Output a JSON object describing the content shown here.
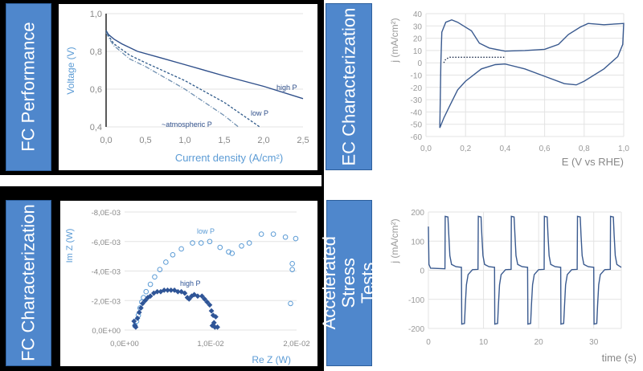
{
  "panels": {
    "fc_performance": "FC Performance",
    "ec_characterization": "EC Characterization",
    "fc_characterization": "FC Characterization",
    "accelerated_stress_tests": "Accelerated Stress Tests"
  },
  "chart_data": [
    {
      "type": "line",
      "xlabel": "Current density (A/cm²)",
      "ylabel": "Voltage (V)",
      "xlim": [
        0,
        2.5
      ],
      "ylim": [
        0.4,
        1.0
      ],
      "xticks": [
        "0,0",
        "0,5",
        "1,0",
        "1,5",
        "2,0",
        "2,5"
      ],
      "yticks": [
        "0,4",
        "0,6",
        "0,8",
        "1,0"
      ],
      "grid": "horizontal",
      "series": [
        {
          "name": "high P",
          "style": "solid",
          "color": "#2f4f8a",
          "points": [
            [
              0,
              0.91
            ],
            [
              0.03,
              0.89
            ],
            [
              0.1,
              0.865
            ],
            [
              0.2,
              0.84
            ],
            [
              0.4,
              0.8
            ],
            [
              0.7,
              0.765
            ],
            [
              1.0,
              0.73
            ],
            [
              1.5,
              0.67
            ],
            [
              2.0,
              0.615
            ],
            [
              2.5,
              0.55
            ]
          ]
        },
        {
          "name": "low P",
          "style": "dashed",
          "color": "#2f5a8a",
          "points": [
            [
              0,
              0.91
            ],
            [
              0.05,
              0.87
            ],
            [
              0.1,
              0.84
            ],
            [
              0.3,
              0.78
            ],
            [
              0.5,
              0.74
            ],
            [
              1.0,
              0.645
            ],
            [
              1.5,
              0.53
            ],
            [
              1.95,
              0.4
            ]
          ]
        },
        {
          "name": "~atmospheric  P",
          "style": "dashdot",
          "color": "#6f8fb0",
          "points": [
            [
              0,
              0.9
            ],
            [
              0.05,
              0.86
            ],
            [
              0.1,
              0.83
            ],
            [
              0.3,
              0.76
            ],
            [
              0.5,
              0.72
            ],
            [
              1.0,
              0.6
            ],
            [
              1.5,
              0.46
            ],
            [
              1.68,
              0.4
            ]
          ]
        }
      ]
    },
    {
      "type": "line",
      "xlabel": "E (V vs RHE)",
      "ylabel": "j (mA/cm²)",
      "xlim": [
        0,
        1.0
      ],
      "ylim": [
        -60,
        40
      ],
      "xticks": [
        "0,0",
        "0,2",
        "0,4",
        "0,6",
        "0,8",
        "1,0"
      ],
      "yticks": [
        "40",
        "30",
        "20",
        "10",
        "0",
        "-10",
        "-20",
        "-30",
        "-40",
        "-50",
        "-60"
      ],
      "grid": "both",
      "series": [
        {
          "style": "solid",
          "color": "#3a5a8f",
          "points": [
            [
              0.07,
              -53
            ],
            [
              0.075,
              0
            ],
            [
              0.08,
              25
            ],
            [
              0.1,
              33
            ],
            [
              0.13,
              35
            ],
            [
              0.16,
              33
            ],
            [
              0.2,
              29
            ],
            [
              0.23,
              26
            ],
            [
              0.27,
              16
            ],
            [
              0.32,
              12
            ],
            [
              0.4,
              9.5
            ],
            [
              0.5,
              10
            ],
            [
              0.6,
              11
            ],
            [
              0.67,
              15
            ],
            [
              0.72,
              23
            ],
            [
              0.78,
              29
            ],
            [
              0.82,
              32
            ],
            [
              0.9,
              31
            ],
            [
              1.0,
              32
            ],
            [
              0.995,
              15
            ],
            [
              0.97,
              5
            ],
            [
              0.9,
              -5
            ],
            [
              0.8,
              -15
            ],
            [
              0.76,
              -18
            ],
            [
              0.7,
              -17
            ],
            [
              0.6,
              -11
            ],
            [
              0.5,
              -5
            ],
            [
              0.4,
              -1
            ],
            [
              0.35,
              -1.5
            ],
            [
              0.28,
              -5
            ],
            [
              0.2,
              -15
            ],
            [
              0.16,
              -22
            ],
            [
              0.12,
              -35
            ],
            [
              0.09,
              -45
            ],
            [
              0.07,
              -53
            ]
          ]
        },
        {
          "style": "dotted",
          "color": "#1a2a4a",
          "points": [
            [
              0.09,
              0
            ],
            [
              0.1,
              3
            ],
            [
              0.12,
              4.5
            ],
            [
              0.4,
              4.5
            ]
          ]
        }
      ]
    },
    {
      "type": "scatter",
      "xlabel": "Re Z (W)",
      "ylabel": "Im Z (W)",
      "xlim": [
        0,
        0.02
      ],
      "ylim": [
        0,
        -0.008
      ],
      "xticks": [
        "0,0E+00",
        "1,0E-02",
        "2,0E-02"
      ],
      "yticks": [
        "0,0E+00",
        "-2,0E-03",
        "-4,0E-03",
        "-6,0E-03",
        "-8,0E-03"
      ],
      "grid": "horizontal",
      "series": [
        {
          "name": "low P",
          "marker": "circle",
          "color": "#5b9bd5",
          "points": [
            [
              0.0012,
              -0.0003
            ],
            [
              0.0014,
              -0.0006
            ],
            [
              0.0016,
              -0.001
            ],
            [
              0.0018,
              -0.0015
            ],
            [
              0.002,
              -0.0019
            ],
            [
              0.0022,
              -0.0022
            ],
            [
              0.0025,
              -0.0026
            ],
            [
              0.003,
              -0.0031
            ],
            [
              0.0035,
              -0.0036
            ],
            [
              0.0041,
              -0.0041
            ],
            [
              0.0048,
              -0.0046
            ],
            [
              0.0056,
              -0.0051
            ],
            [
              0.0066,
              -0.0055
            ],
            [
              0.0079,
              -0.0059
            ],
            [
              0.0089,
              -0.0059
            ],
            [
              0.0099,
              -0.006
            ],
            [
              0.0111,
              -0.0056
            ],
            [
              0.0121,
              -0.0053
            ],
            [
              0.0125,
              -0.0052
            ],
            [
              0.0136,
              -0.0057
            ],
            [
              0.0145,
              -0.0059
            ],
            [
              0.0159,
              -0.0065
            ],
            [
              0.0173,
              -0.0065
            ],
            [
              0.0187,
              -0.0063
            ],
            [
              0.0199,
              -0.0062
            ],
            [
              0.0195,
              -0.0045
            ],
            [
              0.0195,
              -0.0041
            ],
            [
              0.0193,
              -0.0018
            ]
          ]
        },
        {
          "name": "high P",
          "marker": "diamond",
          "color": "#2f5597",
          "points": [
            [
              0.0011,
              -0.0006
            ],
            [
              0.0012,
              -0.0003
            ],
            [
              0.0013,
              -0.0002
            ],
            [
              0.0015,
              -0.0008
            ],
            [
              0.0017,
              -0.0012
            ],
            [
              0.0019,
              -0.0015
            ],
            [
              0.0021,
              -0.0018
            ],
            [
              0.0024,
              -0.002
            ],
            [
              0.0027,
              -0.0022
            ],
            [
              0.003,
              -0.0023
            ],
            [
              0.0034,
              -0.0025
            ],
            [
              0.0038,
              -0.0026
            ],
            [
              0.0042,
              -0.0026
            ],
            [
              0.0046,
              -0.0027
            ],
            [
              0.005,
              -0.0027
            ],
            [
              0.0054,
              -0.0027
            ],
            [
              0.0058,
              -0.0027
            ],
            [
              0.0062,
              -0.0026
            ],
            [
              0.0066,
              -0.0026
            ],
            [
              0.007,
              -0.0025
            ],
            [
              0.0073,
              -0.0022
            ],
            [
              0.0075,
              -0.0021
            ],
            [
              0.0078,
              -0.0023
            ],
            [
              0.0081,
              -0.0024
            ],
            [
              0.0085,
              -0.0023
            ],
            [
              0.009,
              -0.0023
            ],
            [
              0.0093,
              -0.0021
            ],
            [
              0.0096,
              -0.0019
            ],
            [
              0.0099,
              -0.0017
            ],
            [
              0.0101,
              -0.0013
            ],
            [
              0.0103,
              -0.001
            ],
            [
              0.0106,
              -0.0009
            ],
            [
              0.0104,
              -0.0005
            ],
            [
              0.0102,
              -0.0003
            ],
            [
              0.0105,
              -0.0002
            ],
            [
              0.0108,
              -0.0002
            ]
          ]
        }
      ]
    },
    {
      "type": "line",
      "xlabel": "time (s)",
      "ylabel": "j (mA/cm²)",
      "xlim": [
        0,
        35
      ],
      "ylim": [
        -200,
        200
      ],
      "xticks": [
        "0",
        "10",
        "20",
        "30"
      ],
      "yticks": [
        "200",
        "100",
        "0",
        "-100",
        "-200"
      ],
      "grid": "both",
      "series": [
        {
          "style": "solid",
          "color": "#3a5a8f",
          "points": [
            [
              0,
              150
            ],
            [
              0.1,
              20
            ],
            [
              0.4,
              7
            ],
            [
              3,
              5
            ],
            [
              3.05,
              185
            ],
            [
              3.55,
              183
            ],
            [
              3.7,
              120
            ],
            [
              3.9,
              50
            ],
            [
              4.2,
              20
            ],
            [
              5,
              12
            ],
            [
              6,
              10
            ],
            [
              6.05,
              -185
            ],
            [
              6.55,
              -183
            ],
            [
              6.7,
              -120
            ],
            [
              6.9,
              -50
            ],
            [
              7.2,
              -15
            ],
            [
              8,
              2
            ],
            [
              9,
              3
            ],
            [
              9.05,
              185
            ],
            [
              9.55,
              183
            ],
            [
              9.7,
              120
            ],
            [
              9.9,
              50
            ],
            [
              10.2,
              20
            ],
            [
              11,
              12
            ],
            [
              12,
              10
            ],
            [
              12.05,
              -185
            ],
            [
              12.55,
              -183
            ],
            [
              12.7,
              -120
            ],
            [
              12.9,
              -50
            ],
            [
              13.2,
              -15
            ],
            [
              14,
              2
            ],
            [
              15,
              3
            ],
            [
              15.05,
              185
            ],
            [
              15.55,
              183
            ],
            [
              15.7,
              120
            ],
            [
              15.9,
              50
            ],
            [
              16.2,
              20
            ],
            [
              17,
              12
            ],
            [
              18,
              10
            ],
            [
              18.05,
              -185
            ],
            [
              18.55,
              -183
            ],
            [
              18.7,
              -120
            ],
            [
              18.9,
              -50
            ],
            [
              19.2,
              -15
            ],
            [
              20,
              2
            ],
            [
              21,
              3
            ],
            [
              21.05,
              185
            ],
            [
              21.55,
              183
            ],
            [
              21.7,
              120
            ],
            [
              21.9,
              50
            ],
            [
              22.2,
              20
            ],
            [
              23,
              12
            ],
            [
              24,
              10
            ],
            [
              24.05,
              -185
            ],
            [
              24.55,
              -183
            ],
            [
              24.7,
              -120
            ],
            [
              24.9,
              -50
            ],
            [
              25.2,
              -15
            ],
            [
              26,
              2
            ],
            [
              27,
              3
            ],
            [
              27.05,
              185
            ],
            [
              27.55,
              183
            ],
            [
              27.7,
              120
            ],
            [
              27.9,
              50
            ],
            [
              28.2,
              20
            ],
            [
              29,
              12
            ],
            [
              30,
              10
            ],
            [
              30.05,
              -185
            ],
            [
              30.55,
              -183
            ],
            [
              30.7,
              -120
            ],
            [
              30.9,
              -50
            ],
            [
              31.2,
              -15
            ],
            [
              32,
              2
            ],
            [
              33,
              3
            ],
            [
              33.05,
              185
            ],
            [
              33.55,
              183
            ],
            [
              33.7,
              120
            ],
            [
              33.9,
              50
            ],
            [
              34.2,
              20
            ],
            [
              35,
              10
            ]
          ]
        }
      ]
    }
  ]
}
